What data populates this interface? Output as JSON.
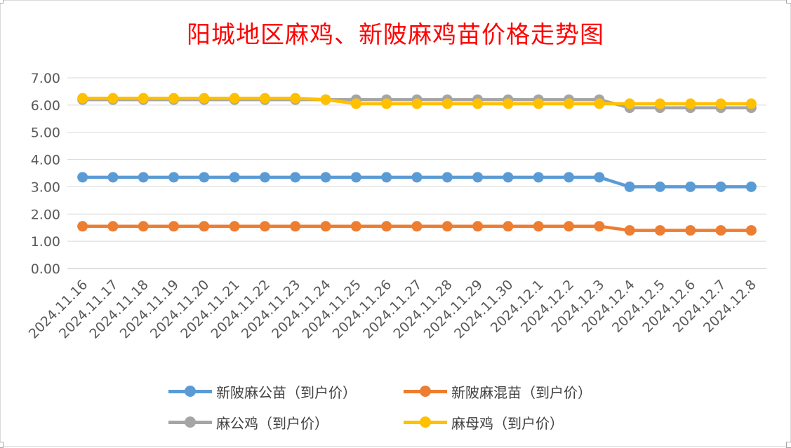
{
  "chart_data": {
    "type": "line",
    "title": "阳城地区麻鸡、新陂麻鸡苗价格走势图",
    "categories": [
      "2024.11.16",
      "2024.11.17",
      "2024.11.18",
      "2024.11.19",
      "2024.11.20",
      "2024.11.21",
      "2024.11.22",
      "2024.11.23",
      "2024.11.24",
      "2024.11.25",
      "2024.11.26",
      "2024.11.27",
      "2024.11.28",
      "2024.11.29",
      "2024.11.30",
      "2024.12.1",
      "2024.12.2",
      "2024.12.3",
      "2024.12.4",
      "2024.12.5",
      "2024.12.6",
      "2024.12.7",
      "2024.12.8"
    ],
    "ylim": [
      0,
      7
    ],
    "y_ticks": [
      "0.00",
      "1.00",
      "2.00",
      "3.00",
      "4.00",
      "5.00",
      "6.00",
      "7.00"
    ],
    "grid": true,
    "legend_position": "bottom",
    "series": [
      {
        "name": "新陂麻公苗（到户价）",
        "color": "#5b9bd5",
        "values": [
          3.35,
          3.35,
          3.35,
          3.35,
          3.35,
          3.35,
          3.35,
          3.35,
          3.35,
          3.35,
          3.35,
          3.35,
          3.35,
          3.35,
          3.35,
          3.35,
          3.35,
          3.35,
          3.0,
          3.0,
          3.0,
          3.0,
          3.0
        ]
      },
      {
        "name": "新陂麻混苗（到户价）",
        "color": "#ed7d31",
        "values": [
          1.55,
          1.55,
          1.55,
          1.55,
          1.55,
          1.55,
          1.55,
          1.55,
          1.55,
          1.55,
          1.55,
          1.55,
          1.55,
          1.55,
          1.55,
          1.55,
          1.55,
          1.55,
          1.4,
          1.4,
          1.4,
          1.4,
          1.4
        ]
      },
      {
        "name": "麻公鸡（到户价）",
        "color": "#a5a5a5",
        "values": [
          6.2,
          6.2,
          6.2,
          6.2,
          6.2,
          6.2,
          6.2,
          6.2,
          6.2,
          6.2,
          6.2,
          6.2,
          6.2,
          6.2,
          6.2,
          6.2,
          6.2,
          6.2,
          5.9,
          5.9,
          5.9,
          5.9,
          5.9
        ]
      },
      {
        "name": "麻母鸡（到户价）",
        "color": "#ffc000",
        "values": [
          6.25,
          6.25,
          6.25,
          6.25,
          6.25,
          6.25,
          6.25,
          6.25,
          6.2,
          6.05,
          6.05,
          6.05,
          6.05,
          6.05,
          6.05,
          6.05,
          6.05,
          6.05,
          6.05,
          6.05,
          6.05,
          6.05,
          6.05
        ]
      }
    ]
  }
}
